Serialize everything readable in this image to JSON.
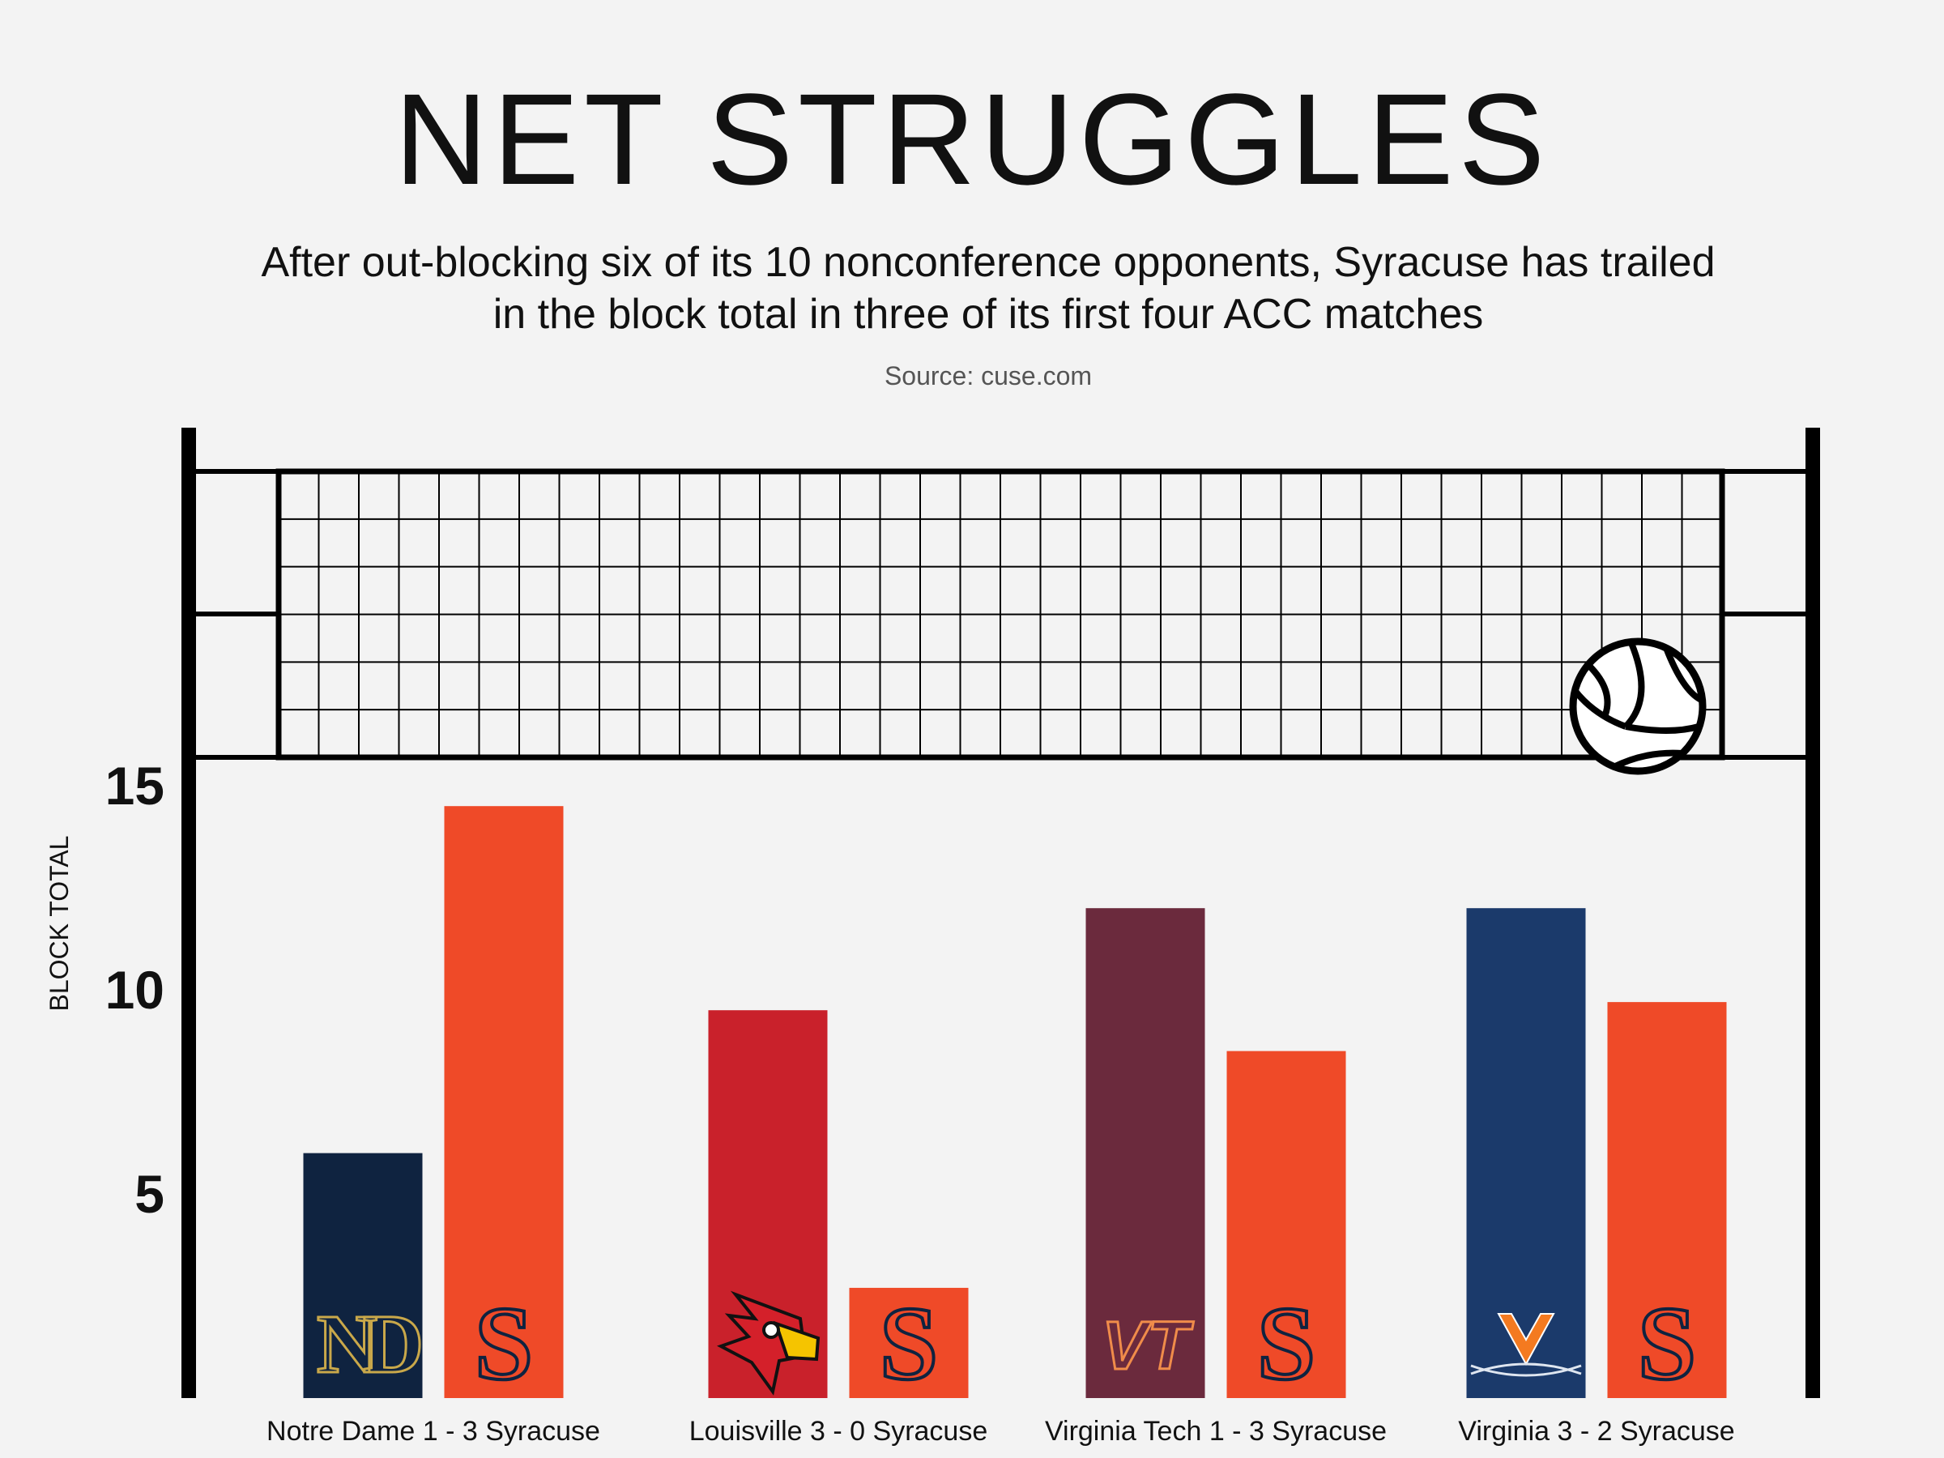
{
  "title": "NET STRUGGLES",
  "subtitle": "After out-blocking six of its 10 nonconference opponents, Syracuse has trailed in the block total in three of its first four ACC matches",
  "source": "Source: cuse.com",
  "chart_data": {
    "type": "bar",
    "ylabel": "BLOCK TOTAL",
    "yticks": [
      5,
      10,
      15
    ],
    "ylim": [
      0,
      15.6
    ],
    "grid": false,
    "categories": [
      "Notre Dame 1 - 3 Syracuse",
      "Louisville 3 - 0 Syracuse",
      "Virginia Tech 1 - 3 Syracuse",
      "Virginia 3 - 2 Syracuse"
    ],
    "matches": [
      {
        "label": "Notre Dame 1 - 3 Syracuse",
        "opponent": "Notre Dame",
        "opponent_blocks": 6,
        "syracuse_blocks": 14.5,
        "opponent_color": "#0f2340",
        "opponent_logo": "notre-dame-logo-icon",
        "logo_text": "ND"
      },
      {
        "label": "Louisville 3 - 0 Syracuse",
        "opponent": "Louisville",
        "opponent_blocks": 9.5,
        "syracuse_blocks": 2.7,
        "opponent_color": "#c9212b",
        "opponent_logo": "cardinal-logo-icon",
        "logo_text": ""
      },
      {
        "label": "Virginia Tech 1 - 3 Syracuse",
        "opponent": "Virginia Tech",
        "opponent_blocks": 12,
        "syracuse_blocks": 8.5,
        "opponent_color": "#6b2a3d",
        "opponent_logo": "vt-logo-icon",
        "logo_text": "VT"
      },
      {
        "label": "Virginia 3 - 2 Syracuse",
        "opponent": "Virginia",
        "opponent_blocks": 12,
        "syracuse_blocks": 9.7,
        "opponent_color": "#1b3a6b",
        "opponent_logo": "virginia-v-logo-icon",
        "logo_text": "V"
      }
    ],
    "syracuse_color": "#ef4a28",
    "syracuse_logo": "syracuse-s-logo-icon",
    "syracuse_logo_text": "S"
  }
}
